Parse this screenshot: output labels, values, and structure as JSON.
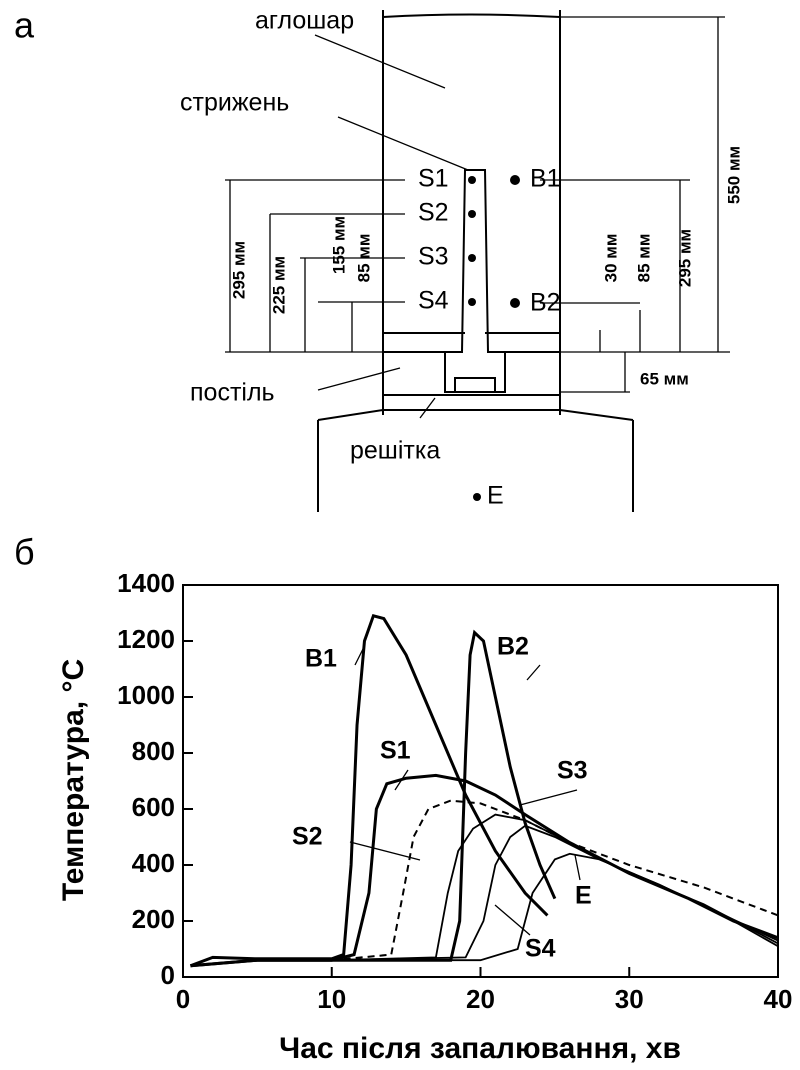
{
  "diagram": {
    "panel_a": "а",
    "panel_b": "б",
    "layer": "аглошар",
    "rod": "стрижень",
    "bed": "постіль",
    "grate": "решітка",
    "points": [
      "S1",
      "S2",
      "S3",
      "S4",
      "B1",
      "B2",
      "E"
    ],
    "dims_left": [
      "295 мм",
      "225 мм",
      "155 мм",
      "85 мм"
    ],
    "dims_right": [
      "30 мм",
      "85 мм",
      "295 мм",
      "550 мм"
    ],
    "dim_bed": "65 мм"
  },
  "chart_data": {
    "type": "line",
    "xlabel": "Час після запалювання, хв",
    "ylabel": "Температура, °C",
    "xlim": [
      0,
      40
    ],
    "ylim": [
      0,
      1400
    ],
    "xticks": [
      0,
      10,
      20,
      30,
      40
    ],
    "yticks": [
      0,
      200,
      400,
      600,
      800,
      1000,
      1200,
      1400
    ],
    "series": [
      {
        "name": "B1",
        "color": "#000000",
        "style": "solid",
        "x": [
          0.5,
          2,
          5,
          10,
          10.8,
          11.3,
          11.7,
          12.2,
          12.8,
          13.5,
          15,
          17,
          19,
          21,
          23,
          24.5
        ],
        "values": [
          40,
          70,
          65,
          65,
          80,
          400,
          900,
          1200,
          1290,
          1280,
          1150,
          900,
          650,
          450,
          300,
          220
        ]
      },
      {
        "name": "B2",
        "color": "#000000",
        "style": "solid",
        "x": [
          0.5,
          5,
          10,
          18,
          18.6,
          19,
          19.3,
          19.6,
          20.2,
          21,
          22,
          23,
          24,
          25
        ],
        "values": [
          40,
          60,
          60,
          60,
          200,
          800,
          1150,
          1230,
          1200,
          1000,
          750,
          550,
          400,
          280
        ]
      },
      {
        "name": "S1",
        "color": "#000000",
        "style": "solid",
        "x": [
          0.5,
          5,
          10,
          11.5,
          12.5,
          13,
          13.7,
          15,
          17,
          19,
          21,
          23,
          26,
          30,
          34,
          37,
          40
        ],
        "values": [
          40,
          60,
          60,
          80,
          300,
          600,
          690,
          710,
          720,
          700,
          650,
          580,
          480,
          370,
          280,
          200,
          140
        ]
      },
      {
        "name": "S2",
        "color": "#000000",
        "style": "dashed",
        "x": [
          10,
          14,
          14.8,
          15.5,
          16.5,
          18,
          20,
          23,
          26,
          30,
          35,
          40
        ],
        "values": [
          60,
          80,
          300,
          500,
          600,
          630,
          620,
          560,
          480,
          400,
          320,
          220
        ]
      },
      {
        "name": "S3",
        "color": "#000000",
        "style": "solid",
        "x": [
          10,
          17,
          17.8,
          18.5,
          19.5,
          21,
          23,
          26,
          30,
          35,
          40
        ],
        "values": [
          60,
          70,
          300,
          450,
          530,
          580,
          560,
          480,
          370,
          260,
          120
        ]
      },
      {
        "name": "S4",
        "color": "#000000",
        "style": "solid",
        "x": [
          10,
          19,
          20.2,
          21,
          22,
          23,
          25,
          28,
          32,
          36,
          40
        ],
        "values": [
          60,
          70,
          200,
          400,
          500,
          540,
          500,
          420,
          330,
          230,
          130
        ]
      },
      {
        "name": "E",
        "color": "#000000",
        "style": "solid",
        "x": [
          10,
          20,
          22.5,
          23.5,
          25,
          26,
          28,
          32,
          36,
          40
        ],
        "values": [
          60,
          60,
          100,
          300,
          420,
          440,
          420,
          330,
          230,
          110
        ]
      }
    ]
  }
}
